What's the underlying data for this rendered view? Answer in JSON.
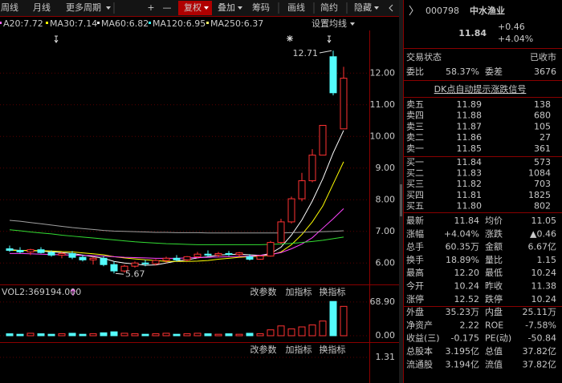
{
  "toolbar": [
    "周线",
    "月线",
    "更多周期",
    "+",
    "—",
    "复权",
    "叠加",
    "筹码",
    "画线",
    "简约",
    "隐藏"
  ],
  "ma_settings": "设置均线",
  "ma_labels": [
    {
      "text": "A20:7.72",
      "color": "#ff66ff"
    },
    {
      "text": "MA30:7.14",
      "color": "#ffff00"
    },
    {
      "text": "MA60:6.82",
      "color": "#e8e8e8"
    },
    {
      "text": "MA120:6.95",
      "color": "#33ffff"
    },
    {
      "text": "MA250:6.37",
      "color": "#ffff66"
    }
  ],
  "chart_data": [
    {
      "type": "candlestick",
      "open": [
        6.45,
        6.4,
        6.35,
        6.42,
        6.33,
        6.25,
        6.3,
        6.18,
        6.1,
        6.15,
        5.95,
        5.75,
        5.9,
        6.0,
        5.98,
        6.08,
        6.15,
        6.1,
        6.2,
        6.28,
        6.25,
        6.3,
        6.27,
        6.2,
        6.12,
        6.22,
        6.65,
        7.3,
        8.03,
        8.6,
        9.41,
        12.52,
        10.24
      ],
      "high": [
        6.55,
        6.5,
        6.45,
        6.5,
        6.4,
        6.35,
        6.38,
        6.25,
        6.2,
        6.22,
        6.05,
        5.95,
        6.05,
        6.1,
        6.12,
        6.2,
        6.25,
        6.22,
        6.35,
        6.4,
        6.35,
        6.38,
        6.35,
        6.28,
        6.25,
        6.7,
        7.4,
        8.1,
        8.85,
        9.6,
        10.35,
        12.71,
        12.2
      ],
      "low": [
        6.35,
        6.3,
        6.25,
        6.3,
        6.2,
        6.15,
        6.12,
        6.05,
        5.95,
        5.9,
        5.67,
        5.7,
        5.85,
        5.9,
        5.92,
        6.0,
        6.05,
        6.05,
        6.15,
        6.2,
        6.18,
        6.22,
        6.2,
        6.08,
        6.1,
        6.2,
        6.6,
        7.25,
        7.95,
        8.55,
        9.4,
        11.3,
        10.24
      ],
      "close": [
        6.4,
        6.35,
        6.42,
        6.33,
        6.25,
        6.3,
        6.18,
        6.1,
        6.15,
        5.95,
        5.75,
        5.9,
        6.0,
        5.98,
        6.08,
        6.15,
        6.1,
        6.2,
        6.28,
        6.25,
        6.3,
        6.27,
        6.32,
        6.12,
        6.22,
        6.65,
        7.3,
        8.03,
        8.6,
        9.41,
        10.35,
        11.38,
        11.84
      ],
      "lines": [
        {
          "color": "#ffffff",
          "values": [
            6.42,
            6.4,
            6.39,
            6.38,
            6.35,
            6.33,
            6.3,
            6.25,
            6.2,
            6.15,
            6.05,
            6.0,
            5.97,
            5.93,
            5.94,
            6.0,
            6.06,
            6.1,
            6.16,
            6.2,
            6.25,
            6.27,
            6.28,
            6.26,
            6.24,
            6.3,
            6.5,
            6.88,
            7.36,
            7.96,
            8.66,
            9.48,
            10.19
          ]
        },
        {
          "color": "#ffff00",
          "values": [
            6.4,
            6.4,
            6.4,
            6.39,
            6.38,
            6.36,
            6.35,
            6.32,
            6.29,
            6.26,
            6.2,
            6.16,
            6.13,
            6.1,
            6.08,
            6.05,
            6.05,
            6.05,
            6.06,
            6.08,
            6.12,
            6.15,
            6.18,
            6.2,
            6.22,
            6.25,
            6.35,
            6.58,
            6.9,
            7.3,
            7.8,
            8.5,
            9.2
          ]
        },
        {
          "color": "#ff44ff",
          "values": [
            6.3,
            6.3,
            6.29,
            6.28,
            6.27,
            6.26,
            6.25,
            6.24,
            6.23,
            6.22,
            6.2,
            6.18,
            6.17,
            6.16,
            6.15,
            6.15,
            6.15,
            6.16,
            6.17,
            6.18,
            6.19,
            6.2,
            6.21,
            6.22,
            6.24,
            6.27,
            6.33,
            6.45,
            6.6,
            6.8,
            7.1,
            7.4,
            7.72
          ]
        },
        {
          "color": "#33dd33",
          "values": [
            7.05,
            7.02,
            6.98,
            6.95,
            6.92,
            6.88,
            6.85,
            6.82,
            6.79,
            6.76,
            6.73,
            6.7,
            6.67,
            6.65,
            6.63,
            6.61,
            6.6,
            6.59,
            6.58,
            6.58,
            6.58,
            6.58,
            6.58,
            6.58,
            6.58,
            6.59,
            6.6,
            6.62,
            6.65,
            6.68,
            6.72,
            6.77,
            6.82
          ]
        },
        {
          "color": "#a0a0a0",
          "values": [
            7.35,
            7.32,
            7.28,
            7.24,
            7.2,
            7.16,
            7.12,
            7.09,
            7.06,
            7.03,
            7.01,
            7.0,
            6.99,
            6.98,
            6.97,
            6.97,
            6.96,
            6.96,
            6.96,
            6.95,
            6.95,
            6.95,
            6.95,
            6.95,
            6.95,
            6.95,
            6.95,
            6.96,
            6.97,
            6.98,
            6.99,
            7.0,
            7.02
          ]
        }
      ],
      "high_label": "12.71",
      "low_label": "5.67",
      "ylim": [
        5.5,
        13.35
      ],
      "yticks": [
        {
          "value": 12,
          "label": "12.00"
        },
        {
          "value": 11,
          "label": "11.00"
        },
        {
          "value": 10,
          "label": "10.00"
        },
        {
          "value": 9,
          "label": "9.00"
        },
        {
          "value": 8,
          "label": "8.00"
        },
        {
          "value": 7,
          "label": "7.00"
        },
        {
          "value": 6,
          "label": "6.00"
        }
      ],
      "grid": true
    },
    {
      "type": "volume",
      "title": "VOL2:369194.000",
      "values": [
        4,
        3,
        5,
        4,
        3,
        4,
        5,
        3,
        4,
        6,
        8,
        5,
        4,
        3,
        4,
        5,
        3,
        4,
        5,
        4,
        3,
        4,
        3,
        5,
        4,
        12,
        20,
        14,
        18,
        22,
        30,
        70,
        60
      ],
      "ylim": [
        0,
        72
      ],
      "yticks": [
        {
          "value": 68.9,
          "label": "68.90"
        },
        {
          "value": 0,
          "label": "0.00"
        }
      ],
      "grid": true
    },
    {
      "type": "indicator",
      "ylim": [
        0,
        1.4
      ],
      "yticks": [
        1.31
      ],
      "grid": true
    }
  ],
  "panel_buttons": [
    "改参数",
    "加指标",
    "换指标"
  ],
  "quote": {
    "code": "000798",
    "name": "中水渔业",
    "price": "11.84",
    "change": "+0.46",
    "change_pct": "+4.04%"
  },
  "status": {
    "label": "交易状态",
    "value": "已收市"
  },
  "ratio": [
    {
      "label": "委比",
      "value": "58.37%"
    },
    {
      "label": "委差",
      "value": "3676"
    }
  ],
  "signal": "DK点自动提示涨跌信号",
  "order_book": [
    {
      "label": "卖五",
      "price": "11.89",
      "volume": "138"
    },
    {
      "label": "卖四",
      "price": "11.88",
      "volume": "680"
    },
    {
      "label": "卖三",
      "price": "11.87",
      "volume": "105"
    },
    {
      "label": "卖二",
      "price": "11.86",
      "volume": "27"
    },
    {
      "label": "卖一",
      "price": "11.85",
      "volume": "361"
    },
    {
      "label": "买一",
      "price": "11.84",
      "volume": "573"
    },
    {
      "label": "买二",
      "price": "11.83",
      "volume": "1084"
    },
    {
      "label": "买三",
      "price": "11.82",
      "volume": "703"
    },
    {
      "label": "买四",
      "price": "11.81",
      "volume": "1825"
    },
    {
      "label": "买五",
      "price": "11.80",
      "volume": "802"
    }
  ],
  "stats": [
    [
      {
        "label": "最新",
        "value": "11.84",
        "color": "#ff4040"
      },
      {
        "label": "均价",
        "value": "11.05",
        "color": "#33ff33"
      }
    ],
    [
      {
        "label": "涨幅",
        "value": "+4.04%",
        "color": "#ff4040"
      },
      {
        "label": "涨跌",
        "value": "▲0.46",
        "color": "#ff4040"
      }
    ],
    [
      {
        "label": "总手",
        "value": "60.35万",
        "color": "#ffff54"
      },
      {
        "label": "金额",
        "value": "6.67亿",
        "color": "#33ffff"
      }
    ],
    [
      {
        "label": "换手",
        "value": "18.89%",
        "color": "#e8e8e8"
      },
      {
        "label": "量比",
        "value": "1.15",
        "color": "#ff4040"
      }
    ],
    [
      {
        "label": "最高",
        "value": "12.20",
        "color": "#ff4040"
      },
      {
        "label": "最低",
        "value": "10.24",
        "color": "#33ff33"
      }
    ],
    [
      {
        "label": "今开",
        "value": "10.24",
        "color": "#33ff33"
      },
      {
        "label": "昨收",
        "value": "11.38",
        "color": "#e8e8e8"
      }
    ],
    [
      {
        "label": "涨停",
        "value": "12.52",
        "color": "#ff4040"
      },
      {
        "label": "跌停",
        "value": "10.24",
        "color": "#33ff33"
      }
    ],
    [
      {
        "label": "外盘",
        "value": "35.23万",
        "color": "#ff4040"
      },
      {
        "label": "内盘",
        "value": "25.11万",
        "color": "#33ff33"
      }
    ],
    [
      {
        "label": "净资产",
        "value": "2.22",
        "color": "#e8e8e8"
      },
      {
        "label": "ROE",
        "value": "-7.58%",
        "color": "#e8e8e8"
      }
    ],
    [
      {
        "label": "收益(三)",
        "value": "-0.175",
        "color": "#e8e8e8"
      },
      {
        "label": "PE(动)",
        "value": "-50.84",
        "color": "#e8e8e8"
      }
    ],
    [
      {
        "label": "总股本",
        "value": "3.195亿",
        "color": "#e8e8e8"
      },
      {
        "label": "总值",
        "value": "37.82亿",
        "color": "#e8e8e8"
      }
    ],
    [
      {
        "label": "流通股",
        "value": "3.194亿",
        "color": "#e8e8e8"
      },
      {
        "label": "流值",
        "value": "37.82亿",
        "color": "#e8e8e8"
      }
    ]
  ]
}
